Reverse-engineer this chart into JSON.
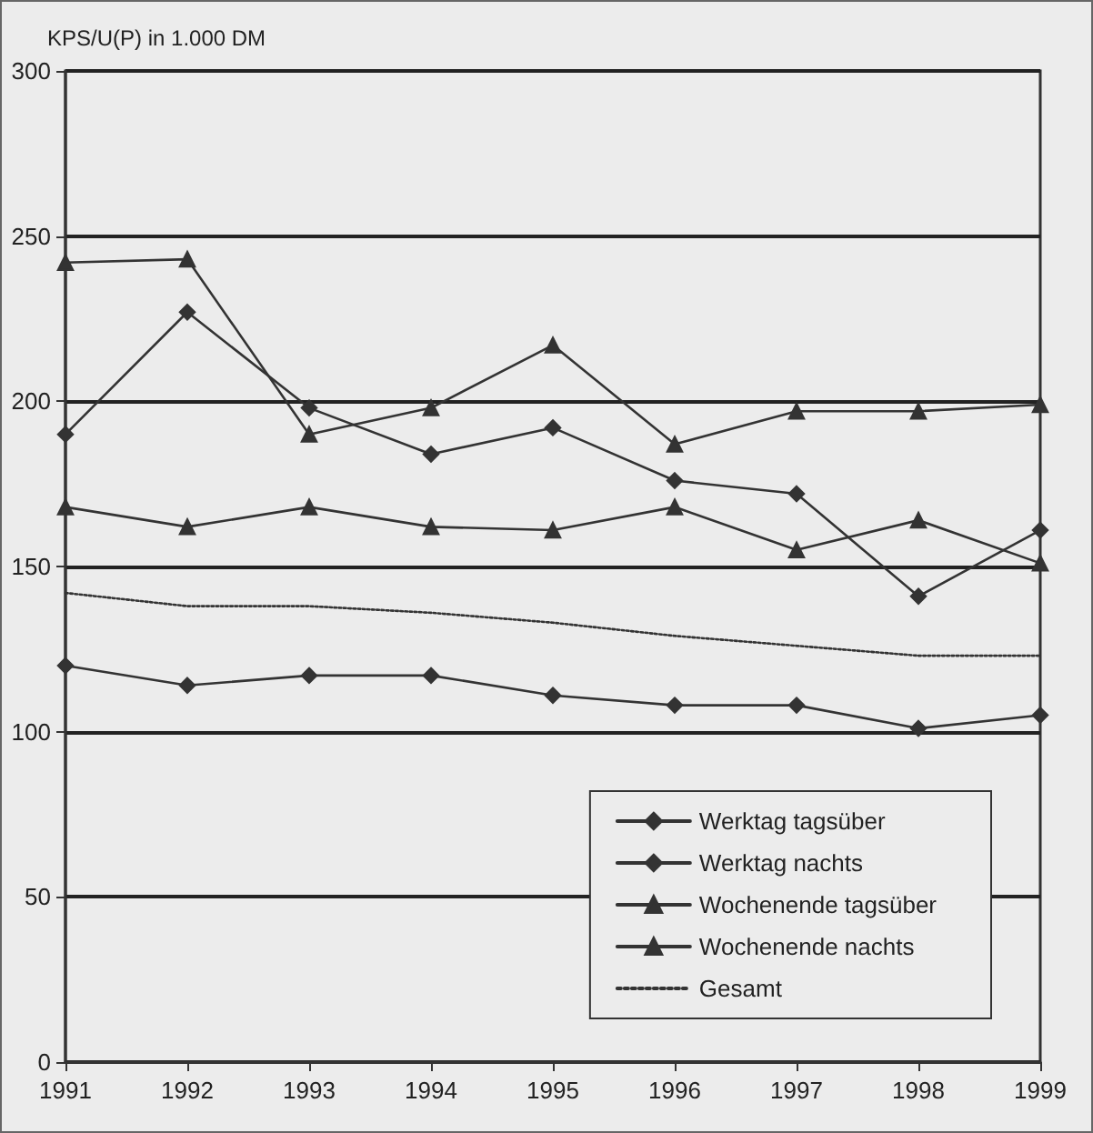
{
  "chart_data": {
    "type": "line",
    "ylabel": "KPS/U(P) in 1.000 DM",
    "categories": [
      "1991",
      "1992",
      "1993",
      "1994",
      "1995",
      "1996",
      "1997",
      "1998",
      "1999"
    ],
    "series": [
      {
        "name": "Werktag tagsüber",
        "color": "#333333",
        "marker": "diamond",
        "values": [
          120,
          114,
          117,
          117,
          111,
          108,
          108,
          101,
          105
        ]
      },
      {
        "name": "Werktag nachts",
        "color": "#333333",
        "marker": "diamond",
        "values": [
          190,
          227,
          198,
          184,
          192,
          176,
          172,
          141,
          161
        ]
      },
      {
        "name": "Wochenende tagsüber",
        "color": "#333333",
        "marker": "triangle",
        "values": [
          168,
          162,
          168,
          162,
          161,
          168,
          155,
          164,
          151
        ]
      },
      {
        "name": "Wochenende nachts",
        "color": "#333333",
        "marker": "triangle",
        "values": [
          242,
          243,
          190,
          198,
          217,
          187,
          197,
          197,
          199
        ]
      },
      {
        "name": "Gesamt",
        "color": "#333333",
        "marker": "none",
        "line_style": "dotted",
        "values": [
          142,
          138,
          138,
          136,
          133,
          129,
          126,
          123,
          123
        ]
      }
    ],
    "ylim": [
      0,
      300
    ],
    "yticks": [
      0,
      50,
      100,
      150,
      200,
      250,
      300
    ],
    "grid": "y",
    "legend": "bottom right"
  }
}
